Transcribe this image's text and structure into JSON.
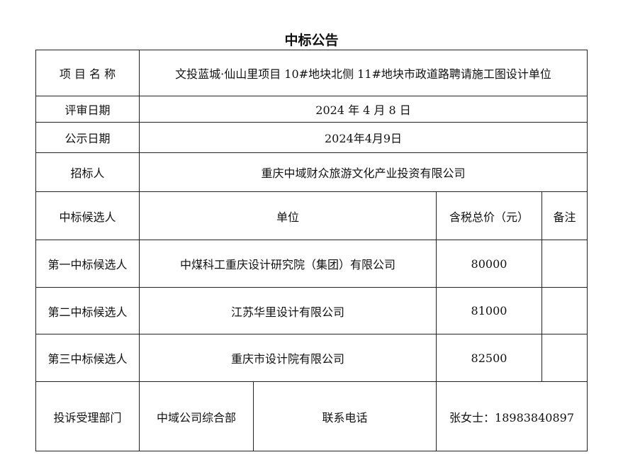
{
  "title": "中标公告",
  "project": {
    "label": "项 目 名 称",
    "value": "文投蓝城·仙山里项目 10#地块北侧 11#地块市政道路聘请施工图设计单位"
  },
  "review_date": {
    "label": "评审日期",
    "value": "2024 年 4 月 8 日"
  },
  "publish_date": {
    "label": "公示日期",
    "value": "2024年4月9日"
  },
  "tenderer": {
    "label": "招标人",
    "value": "重庆中域财众旅游文化产业投资有限公司"
  },
  "candidates_header": {
    "label": "中标候选人",
    "unit": "单位",
    "price": "含税总价（元）",
    "note": "备注"
  },
  "candidates": [
    {
      "rank": "第一中标候选人",
      "unit": "中煤科工重庆设计研究院（集团）有限公司",
      "price": "80000",
      "note": ""
    },
    {
      "rank": "第二中标候选人",
      "unit": "江苏华里设计有限公司",
      "price": "81000",
      "note": ""
    },
    {
      "rank": "第三中标候选人",
      "unit": "重庆市设计院有限公司",
      "price": "82500",
      "note": ""
    }
  ],
  "complaint": {
    "label": "投诉受理部门",
    "dept": "中域公司综合部",
    "phone_label": "联系电话",
    "phone": "张女士：18983840897"
  }
}
